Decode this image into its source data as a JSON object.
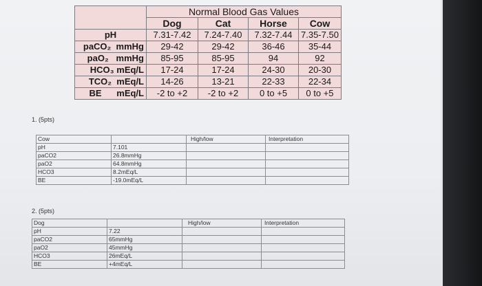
{
  "reference": {
    "title": "Normal Blood Gas Values",
    "species": [
      "Dog",
      "Cat",
      "Horse",
      "Cow"
    ],
    "rows": [
      {
        "label": "pH",
        "values": [
          "7.31-7.42",
          "7.24-7.40",
          "7.32-7.44",
          "7.35-7.50"
        ]
      },
      {
        "label": "paCO₂  mmHg",
        "values": [
          "29-42",
          "29-42",
          "36-46",
          "35-44"
        ]
      },
      {
        "label": "paO₂   mmHg",
        "values": [
          "85-95",
          "85-95",
          "94",
          "92"
        ]
      },
      {
        "label": "HCO₃ mEq/L",
        "values": [
          "17-24",
          "17-24",
          "24-30",
          "20-30"
        ]
      },
      {
        "label": "TCO₂  mEq/L",
        "values": [
          "14-26",
          "13-21",
          "22-33",
          "22-34"
        ]
      },
      {
        "label": "BE      mEq/L",
        "values": [
          "-2 to +2",
          "-2 to +2",
          "0 to +5",
          "0 to +5"
        ]
      }
    ]
  },
  "question1": {
    "label": "1.  (5pts)",
    "species": "Cow",
    "high_low_header": "High/low",
    "interpretation_header": "Interpretation",
    "rows": [
      {
        "param": "pH",
        "value": "7.101"
      },
      {
        "param": "paCO2",
        "value": "26.8mmHg"
      },
      {
        "param": "paO2",
        "value": "64.8mmHg"
      },
      {
        "param": "HCO3",
        "value": "8.2mEq/L"
      },
      {
        "param": "BE",
        "value": "-19.0mEq/L"
      }
    ]
  },
  "question2": {
    "label": "2.  (5pts)",
    "species": "Dog",
    "high_low_header": "High/low",
    "interpretation_header": "Interpretation",
    "rows": [
      {
        "param": "pH",
        "value": "7.22"
      },
      {
        "param": "paCO2",
        "value": "65mmHg"
      },
      {
        "param": "paO2",
        "value": "45mmHg"
      },
      {
        "param": "HCO3",
        "value": "26mEq/L"
      },
      {
        "param": "BE",
        "value": "+4mEq/L"
      }
    ]
  }
}
